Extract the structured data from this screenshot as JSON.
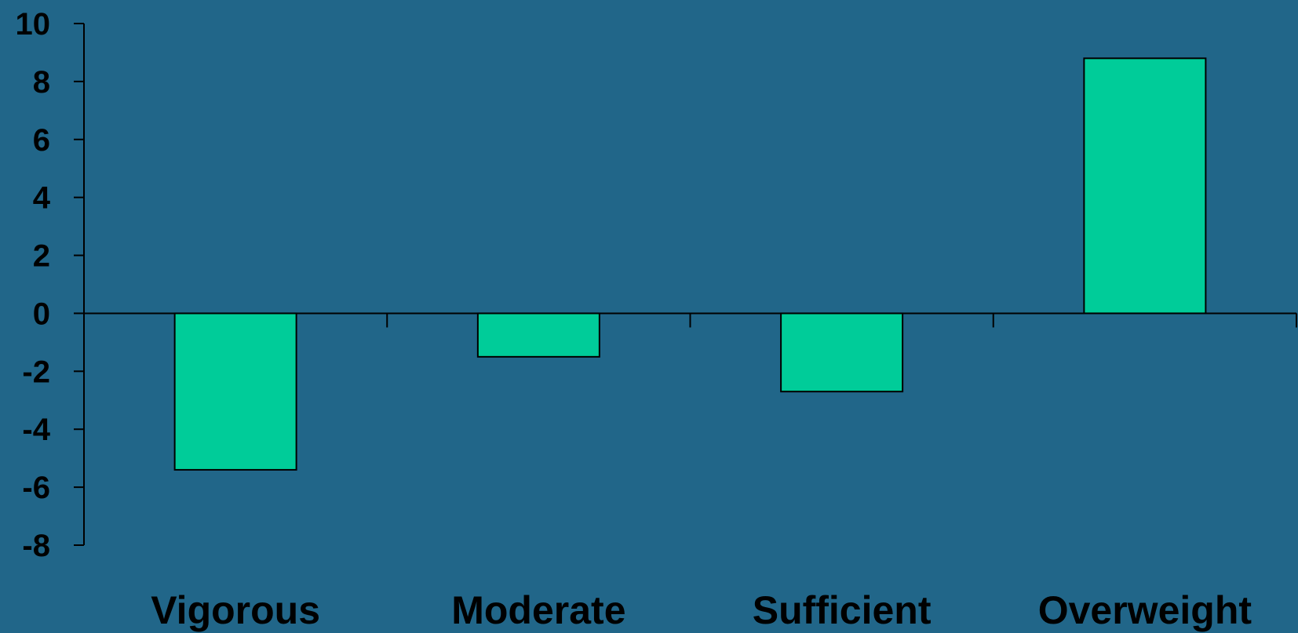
{
  "colors": {
    "background": "#216689",
    "bar_fill": "#00CC99",
    "axis": "#000000"
  },
  "chart_data": {
    "type": "bar",
    "categories": [
      "Vigorous",
      "Moderate",
      "Sufficient",
      "Overweight"
    ],
    "values": [
      -5.4,
      -1.5,
      -2.7,
      8.8
    ],
    "ylim": [
      -8,
      10
    ],
    "yticks": [
      -8,
      -6,
      -4,
      -2,
      0,
      2,
      4,
      6,
      8,
      10
    ],
    "title": "",
    "xlabel": "",
    "ylabel": "",
    "grid": false,
    "legend": "none"
  }
}
